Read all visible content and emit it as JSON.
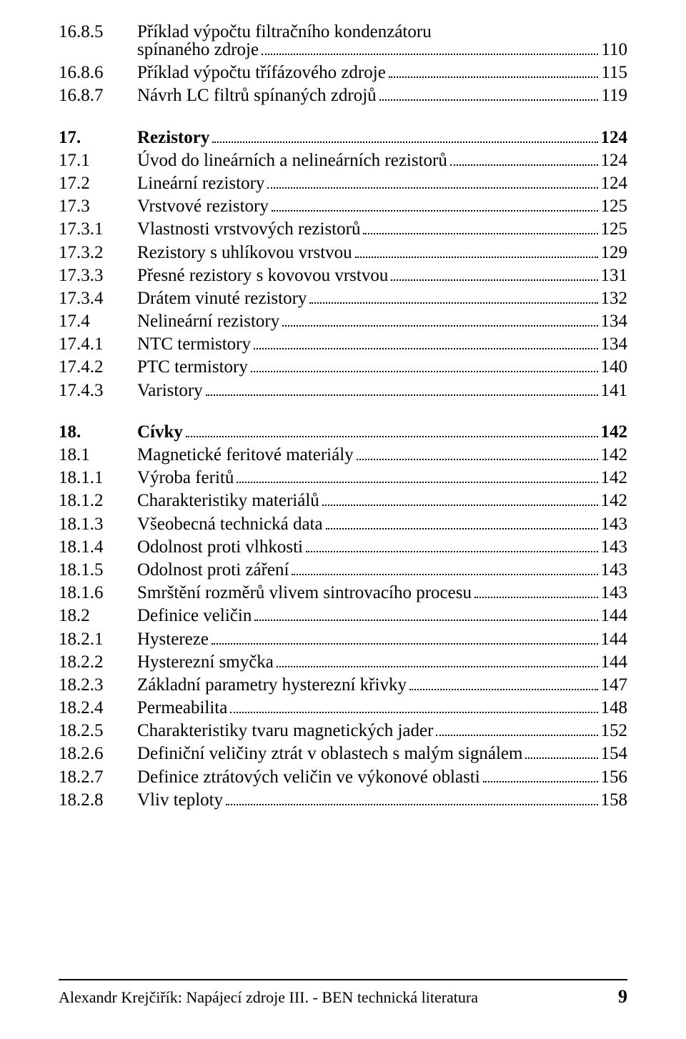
{
  "colors": {
    "text": "#000000",
    "background": "#ffffff"
  },
  "typography": {
    "family": "Times New Roman",
    "body_fontsize": 25,
    "footer_fontsize": 22,
    "footer_page_fontsize": 26
  },
  "toc": [
    {
      "num": "16.8.5",
      "title": "Příklad výpočtu filtračního kondenzátoru",
      "wrap": "spínaného zdroje",
      "page": "110",
      "bold": false
    },
    {
      "num": "16.8.6",
      "title": "Příklad výpočtu třífázového zdroje",
      "page": "115",
      "bold": false
    },
    {
      "num": "16.8.7",
      "title": "Návrh LC filtrů spínaných zdrojů",
      "page": "119",
      "bold": false
    },
    {
      "gap": true
    },
    {
      "num": "17.",
      "title": "Rezistory",
      "page": "124",
      "bold": true
    },
    {
      "num": "17.1",
      "title": "Úvod do lineárních a nelineárních rezistorů",
      "page": "124",
      "bold": false
    },
    {
      "num": "17.2",
      "title": "Lineární rezistory",
      "page": "124",
      "bold": false
    },
    {
      "num": "17.3",
      "title": "Vrstvové rezistory",
      "page": "125",
      "bold": false
    },
    {
      "num": "17.3.1",
      "title": "Vlastnosti vrstvových rezistorů",
      "page": "125",
      "bold": false
    },
    {
      "num": "17.3.2",
      "title": "Rezistory s uhlíkovou vrstvou",
      "page": "129",
      "bold": false
    },
    {
      "num": "17.3.3",
      "title": "Přesné rezistory s kovovou vrstvou",
      "page": "131",
      "bold": false
    },
    {
      "num": "17.3.4",
      "title": "Drátem vinuté rezistory",
      "page": "132",
      "bold": false
    },
    {
      "num": "17.4",
      "title": "Nelineární rezistory",
      "page": "134",
      "bold": false
    },
    {
      "num": "17.4.1",
      "title": "NTC termistory",
      "page": "134",
      "bold": false
    },
    {
      "num": "17.4.2",
      "title": "PTC termistory",
      "page": "140",
      "bold": false
    },
    {
      "num": "17.4.3",
      "title": "Varistory",
      "page": "141",
      "bold": false
    },
    {
      "gap": true
    },
    {
      "num": "18.",
      "title": "Cívky",
      "page": "142",
      "bold": true
    },
    {
      "num": "18.1",
      "title": "Magnetické feritové materiály",
      "page": "142",
      "bold": false
    },
    {
      "num": "18.1.1",
      "title": "Výroba feritů",
      "page": "142",
      "bold": false
    },
    {
      "num": "18.1.2",
      "title": "Charakteristiky materiálů",
      "page": "142",
      "bold": false
    },
    {
      "num": "18.1.3",
      "title": "Všeobecná technická data",
      "page": "143",
      "bold": false
    },
    {
      "num": "18.1.4",
      "title": "Odolnost proti vlhkosti",
      "page": "143",
      "bold": false
    },
    {
      "num": "18.1.5",
      "title": "Odolnost proti záření",
      "page": "143",
      "bold": false
    },
    {
      "num": "18.1.6",
      "title": "Smrštění rozměrů vlivem sintrovacího procesu",
      "page": "143",
      "bold": false
    },
    {
      "num": "18.2",
      "title": "Definice veličin",
      "page": "144",
      "bold": false
    },
    {
      "num": "18.2.1",
      "title": "Hystereze",
      "page": "144",
      "bold": false
    },
    {
      "num": "18.2.2",
      "title": "Hysterezní smyčka",
      "page": "144",
      "bold": false
    },
    {
      "num": "18.2.3",
      "title": "Základní parametry hysterezní křivky",
      "page": "147",
      "bold": false
    },
    {
      "num": "18.2.4",
      "title": "Permeabilita",
      "page": "148",
      "bold": false
    },
    {
      "num": "18.2.5",
      "title": "Charakteristiky tvaru magnetických jader",
      "page": "152",
      "bold": false
    },
    {
      "num": "18.2.6",
      "title": "Definiční veličiny ztrát v oblastech s malým signálem",
      "page": "154",
      "bold": false
    },
    {
      "num": "18.2.7",
      "title": "Definice ztrátových veličin ve výkonové oblasti",
      "page": "156",
      "bold": false
    },
    {
      "num": "18.2.8",
      "title": "Vliv teploty",
      "page": "158",
      "bold": false
    }
  ],
  "footer": {
    "text": "Alexandr Krejčiřík: Napájecí zdroje III. - BEN technická literatura",
    "page": "9"
  }
}
